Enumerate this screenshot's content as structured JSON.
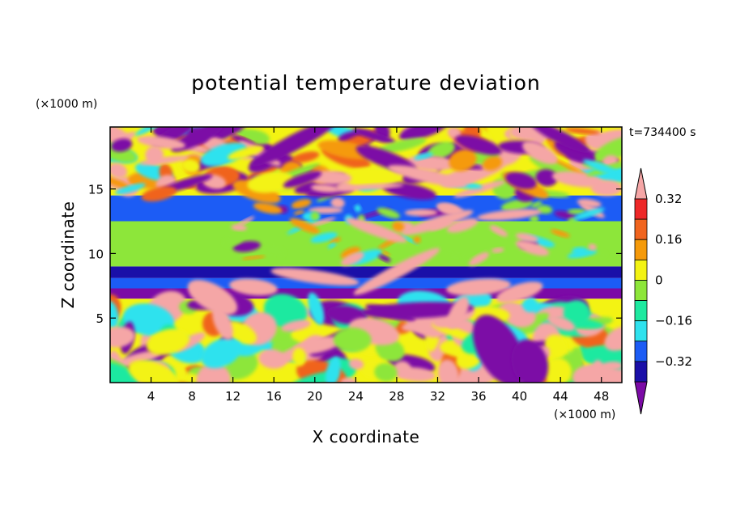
{
  "chart_data": {
    "type": "heatmap",
    "title": "potential temperature deviation",
    "xlabel": "X coordinate",
    "ylabel": "Z coordinate",
    "x_units": "(×1000 m)",
    "y_units": "(×1000 m)",
    "time_label": "t=734400 s",
    "xlim": [
      0,
      50
    ],
    "ylim": [
      0,
      19.8
    ],
    "x_ticks": [
      4,
      8,
      12,
      16,
      20,
      24,
      28,
      32,
      36,
      40,
      44,
      48
    ],
    "y_ticks": [
      5,
      10,
      15
    ],
    "colorbar": {
      "ticks": [
        "0.32",
        "0.16",
        "0",
        "−0.16",
        "−0.32"
      ],
      "tick_values": [
        0.32,
        0.16,
        0,
        -0.16,
        -0.32
      ],
      "levels": [
        -0.4,
        -0.32,
        -0.24,
        -0.16,
        -0.08,
        0,
        0.08,
        0.16,
        0.24,
        0.32,
        0.4
      ],
      "colors": [
        "#7b0aa6",
        "#1a0fa8",
        "#1c5cf5",
        "#2fe2ee",
        "#1ee9a0",
        "#8de63a",
        "#f3f313",
        "#f59a0a",
        "#f0641e",
        "#ee2828",
        "#f5a6a6"
      ]
    },
    "field_bands": [
      {
        "z_range": [
          0,
          6.5
        ],
        "description": "mixed warm/cool eddies"
      },
      {
        "z_range": [
          6.5,
          7.3
        ],
        "value": -0.4
      },
      {
        "z_range": [
          7.3,
          8.1
        ],
        "value": -0.2
      },
      {
        "z_range": [
          8.1,
          9.0
        ],
        "value": -0.28
      },
      {
        "z_range": [
          9.0,
          12.5
        ],
        "value": 0.0
      },
      {
        "z_range": [
          12.5,
          14.5
        ],
        "value": -0.22
      },
      {
        "z_range": [
          14.5,
          19.8
        ],
        "description": "strongly mixed upper layer"
      }
    ]
  }
}
